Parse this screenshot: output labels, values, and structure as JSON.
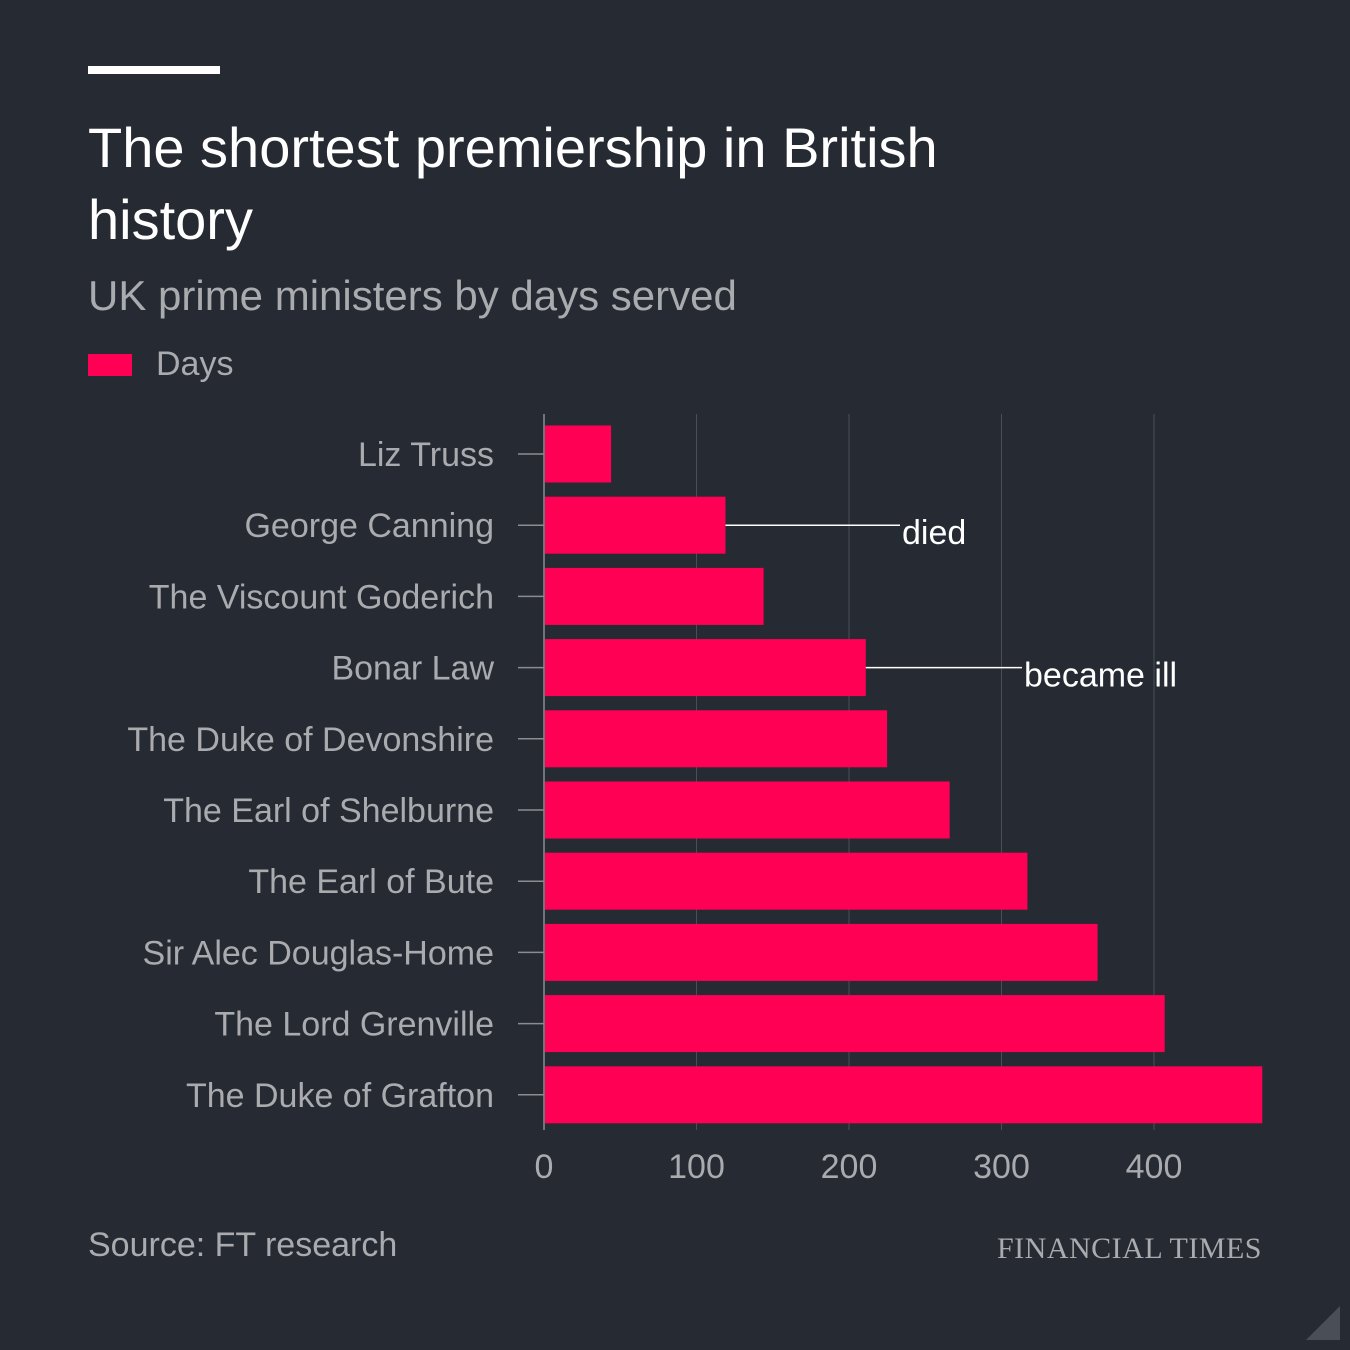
{
  "header": {
    "title": "The shortest premiership in British history",
    "subtitle": "UK prime ministers by days served"
  },
  "legend": {
    "label": "Days"
  },
  "colors": {
    "bar": "#ff0055",
    "background": "#262a33",
    "muted_text": "#a9abae",
    "grid": "#4a4e57"
  },
  "chart_data": {
    "type": "bar",
    "orientation": "horizontal",
    "title": "The shortest premiership in British history",
    "subtitle": "UK prime ministers by days served",
    "categories": [
      "Liz Truss",
      "George Canning",
      "The Viscount Goderich",
      "Bonar Law",
      "The Duke of Devonshire",
      "The Earl of Shelburne",
      "The Earl of Bute",
      "Sir Alec Douglas-Home",
      "The Lord Grenville",
      "The Duke of Grafton"
    ],
    "series": [
      {
        "name": "Days",
        "values": [
          44,
          119,
          144,
          211,
          225,
          266,
          317,
          363,
          407,
          471
        ]
      }
    ],
    "xlim": [
      0,
      471
    ],
    "xticks": [
      0,
      100,
      200,
      300,
      400
    ],
    "grid": true,
    "legend_position": "top-left",
    "annotations": [
      {
        "category": "George Canning",
        "text": "died"
      },
      {
        "category": "Bonar Law",
        "text": "became ill"
      }
    ]
  },
  "footer": {
    "source": "Source: FT research",
    "brand": "FINANCIAL TIMES"
  }
}
